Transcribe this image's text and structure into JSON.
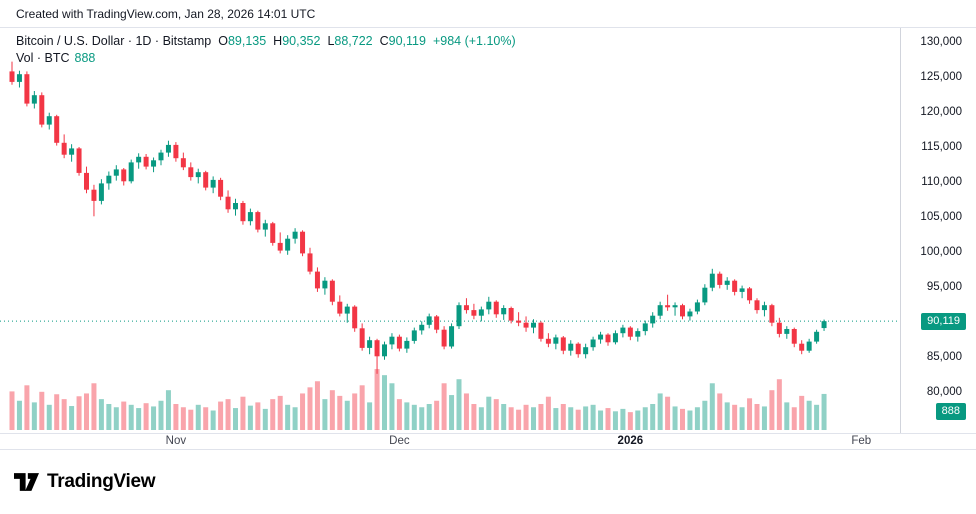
{
  "header": {
    "attribution": "Created with TradingView.com, Jan 28, 2026 14:01 UTC"
  },
  "legend": {
    "title": "Bitcoin / U.S. Dollar · 1D · Bitstamp",
    "ohlc": [
      {
        "label": "O",
        "value": "89,135"
      },
      {
        "label": "H",
        "value": "90,352"
      },
      {
        "label": "L",
        "value": "88,722"
      },
      {
        "label": "C",
        "value": "90,119"
      }
    ],
    "change": "+984 (+1.10%)",
    "volume_label": "Vol · BTC",
    "volume_value": "888"
  },
  "badges": {
    "price": "90,119",
    "volume": "888"
  },
  "axes": {
    "price_ticks": [
      130000,
      125000,
      120000,
      115000,
      110000,
      105000,
      100000,
      95000,
      85000,
      80000
    ],
    "time_ticks": [
      {
        "label": "Nov",
        "index": 22,
        "bold": false
      },
      {
        "label": "Dec",
        "index": 52,
        "bold": false
      },
      {
        "label": "2026",
        "index": 83,
        "bold": true
      },
      {
        "label": "Feb",
        "index": 114,
        "bold": false
      }
    ]
  },
  "colors": {
    "up": "#089981",
    "down": "#f23645",
    "up_vol": "rgba(8,153,129,0.45)",
    "down_vol": "rgba(242,54,69,0.45)",
    "badge": "#089981",
    "text": "#131722",
    "axis_line": "#e0e3eb"
  },
  "footer": {
    "brand": "TradingView"
  },
  "chart_data": {
    "type": "candlestick",
    "title": "Bitcoin / U.S. Dollar",
    "interval": "1D",
    "exchange": "Bitstamp",
    "last": {
      "open": 89135,
      "high": 90352,
      "low": 88722,
      "close": 90119,
      "change": "+984 (+1.10%)"
    },
    "y_axis": {
      "min": 80000,
      "max": 130000,
      "tick_step": 5000
    },
    "volume_unit": "BTC",
    "candles": [
      [
        125800,
        127200,
        123900,
        124300
      ],
      [
        124300,
        125900,
        123500,
        125400
      ],
      [
        125400,
        125800,
        120800,
        121200
      ],
      [
        121200,
        123000,
        120500,
        122400
      ],
      [
        122400,
        122800,
        117800,
        118200
      ],
      [
        118200,
        119900,
        117500,
        119400
      ],
      [
        119400,
        119600,
        115200,
        115600
      ],
      [
        115600,
        116800,
        113400,
        113900
      ],
      [
        113900,
        115400,
        112900,
        114800
      ],
      [
        114800,
        115000,
        110900,
        111300
      ],
      [
        111300,
        112200,
        108400,
        108900
      ],
      [
        108900,
        109600,
        105100,
        107300
      ],
      [
        107300,
        110400,
        106800,
        109800
      ],
      [
        109800,
        111500,
        108900,
        110900
      ],
      [
        110900,
        112400,
        110200,
        111800
      ],
      [
        111800,
        112000,
        109500,
        110100
      ],
      [
        110100,
        113200,
        109800,
        112800
      ],
      [
        112800,
        114100,
        111900,
        113600
      ],
      [
        113600,
        114000,
        111800,
        112200
      ],
      [
        112200,
        113500,
        111400,
        113100
      ],
      [
        113100,
        114600,
        112400,
        114200
      ],
      [
        114200,
        115900,
        113600,
        115300
      ],
      [
        115300,
        115700,
        112900,
        113400
      ],
      [
        113400,
        114200,
        111700,
        112100
      ],
      [
        112100,
        112800,
        110200,
        110700
      ],
      [
        110700,
        111900,
        109800,
        111400
      ],
      [
        111400,
        111600,
        108800,
        109200
      ],
      [
        109200,
        110800,
        108400,
        110300
      ],
      [
        110300,
        110600,
        107400,
        107900
      ],
      [
        107900,
        108800,
        105600,
        106100
      ],
      [
        106100,
        107600,
        105200,
        107000
      ],
      [
        107000,
        107300,
        103900,
        104400
      ],
      [
        104400,
        106200,
        103800,
        105700
      ],
      [
        105700,
        105900,
        102800,
        103200
      ],
      [
        103200,
        104600,
        102200,
        104100
      ],
      [
        104100,
        104300,
        100900,
        101300
      ],
      [
        101300,
        102800,
        99800,
        100200
      ],
      [
        100200,
        102400,
        99600,
        101900
      ],
      [
        101900,
        103400,
        101200,
        102900
      ],
      [
        102900,
        103100,
        99400,
        99800
      ],
      [
        99800,
        100600,
        96800,
        97200
      ],
      [
        97200,
        97800,
        94300,
        94800
      ],
      [
        94800,
        96400,
        93900,
        95900
      ],
      [
        95900,
        96100,
        92400,
        92900
      ],
      [
        92900,
        93800,
        90800,
        91200
      ],
      [
        91200,
        92600,
        89900,
        92200
      ],
      [
        92200,
        92400,
        88600,
        89100
      ],
      [
        89100,
        89800,
        85900,
        86300
      ],
      [
        86300,
        87900,
        85400,
        87400
      ],
      [
        87400,
        87600,
        82600,
        85100
      ],
      [
        85100,
        87200,
        84600,
        86800
      ],
      [
        86800,
        88400,
        86100,
        87900
      ],
      [
        87900,
        88200,
        85800,
        86200
      ],
      [
        86200,
        87800,
        85600,
        87300
      ],
      [
        87300,
        89200,
        86900,
        88800
      ],
      [
        88800,
        90100,
        88200,
        89600
      ],
      [
        89600,
        91200,
        89100,
        90800
      ],
      [
        90800,
        91000,
        88400,
        88900
      ],
      [
        88900,
        89400,
        86100,
        86500
      ],
      [
        86500,
        89800,
        86200,
        89400
      ],
      [
        89400,
        92800,
        89000,
        92400
      ],
      [
        92400,
        93400,
        91200,
        91700
      ],
      [
        91700,
        92600,
        90400,
        90900
      ],
      [
        90900,
        92200,
        90100,
        91800
      ],
      [
        91800,
        93600,
        91100,
        92900
      ],
      [
        92900,
        93100,
        90600,
        91100
      ],
      [
        91100,
        92400,
        90300,
        92000
      ],
      [
        92000,
        92200,
        89800,
        90200
      ],
      [
        90200,
        91400,
        89400,
        89900
      ],
      [
        89900,
        90800,
        88600,
        89200
      ],
      [
        89200,
        90400,
        88400,
        89900
      ],
      [
        89900,
        90100,
        87200,
        87600
      ],
      [
        87600,
        88400,
        86400,
        86900
      ],
      [
        86900,
        88200,
        86100,
        87800
      ],
      [
        87800,
        88000,
        85400,
        85900
      ],
      [
        85900,
        87400,
        85200,
        86900
      ],
      [
        86900,
        87100,
        84900,
        85400
      ],
      [
        85400,
        86900,
        84800,
        86400
      ],
      [
        86400,
        87900,
        85900,
        87500
      ],
      [
        87500,
        88600,
        86900,
        88200
      ],
      [
        88200,
        88400,
        86600,
        87100
      ],
      [
        87100,
        88800,
        86800,
        88400
      ],
      [
        88400,
        89600,
        87800,
        89200
      ],
      [
        89200,
        89400,
        87400,
        87900
      ],
      [
        87900,
        89100,
        87200,
        88700
      ],
      [
        88700,
        90200,
        88100,
        89800
      ],
      [
        89800,
        91400,
        89200,
        90900
      ],
      [
        90900,
        92900,
        90400,
        92400
      ],
      [
        92400,
        93900,
        91600,
        92100
      ],
      [
        92100,
        92800,
        90900,
        92400
      ],
      [
        92400,
        92600,
        90400,
        90800
      ],
      [
        90800,
        91900,
        90200,
        91500
      ],
      [
        91500,
        93200,
        91100,
        92800
      ],
      [
        92800,
        95400,
        92400,
        94900
      ],
      [
        94900,
        97600,
        94400,
        96900
      ],
      [
        96900,
        97200,
        94800,
        95300
      ],
      [
        95300,
        96400,
        94600,
        95900
      ],
      [
        95900,
        96100,
        93800,
        94300
      ],
      [
        94300,
        95200,
        93400,
        94800
      ],
      [
        94800,
        95000,
        92600,
        93100
      ],
      [
        93100,
        93400,
        91200,
        91700
      ],
      [
        91700,
        92900,
        90800,
        92400
      ],
      [
        92400,
        92600,
        89400,
        89900
      ],
      [
        89900,
        90600,
        87800,
        88300
      ],
      [
        88300,
        89400,
        87600,
        89000
      ],
      [
        89000,
        89200,
        86400,
        86900
      ],
      [
        86900,
        87400,
        85400,
        85900
      ],
      [
        85900,
        87600,
        85600,
        87200
      ],
      [
        87200,
        88900,
        86900,
        88600
      ],
      [
        89135,
        90352,
        88722,
        90119
      ]
    ],
    "volumes": [
      950,
      720,
      1100,
      680,
      940,
      620,
      880,
      760,
      590,
      830,
      900,
      1150,
      760,
      640,
      560,
      700,
      620,
      540,
      660,
      580,
      720,
      980,
      640,
      560,
      500,
      620,
      560,
      480,
      700,
      760,
      540,
      820,
      600,
      680,
      520,
      760,
      840,
      620,
      560,
      900,
      1050,
      1200,
      760,
      980,
      840,
      720,
      900,
      1100,
      680,
      1500,
      1350,
      1150,
      760,
      680,
      620,
      560,
      640,
      720,
      1150,
      860,
      1250,
      900,
      640,
      560,
      820,
      760,
      640,
      560,
      500,
      620,
      560,
      640,
      820,
      540,
      640,
      560,
      500,
      580,
      620,
      480,
      540,
      460,
      520,
      440,
      480,
      560,
      640,
      900,
      820,
      580,
      520,
      480,
      560,
      720,
      1150,
      900,
      680,
      620,
      560,
      780,
      640,
      580,
      980,
      1250,
      680,
      560,
      840,
      720,
      620,
      888
    ]
  }
}
